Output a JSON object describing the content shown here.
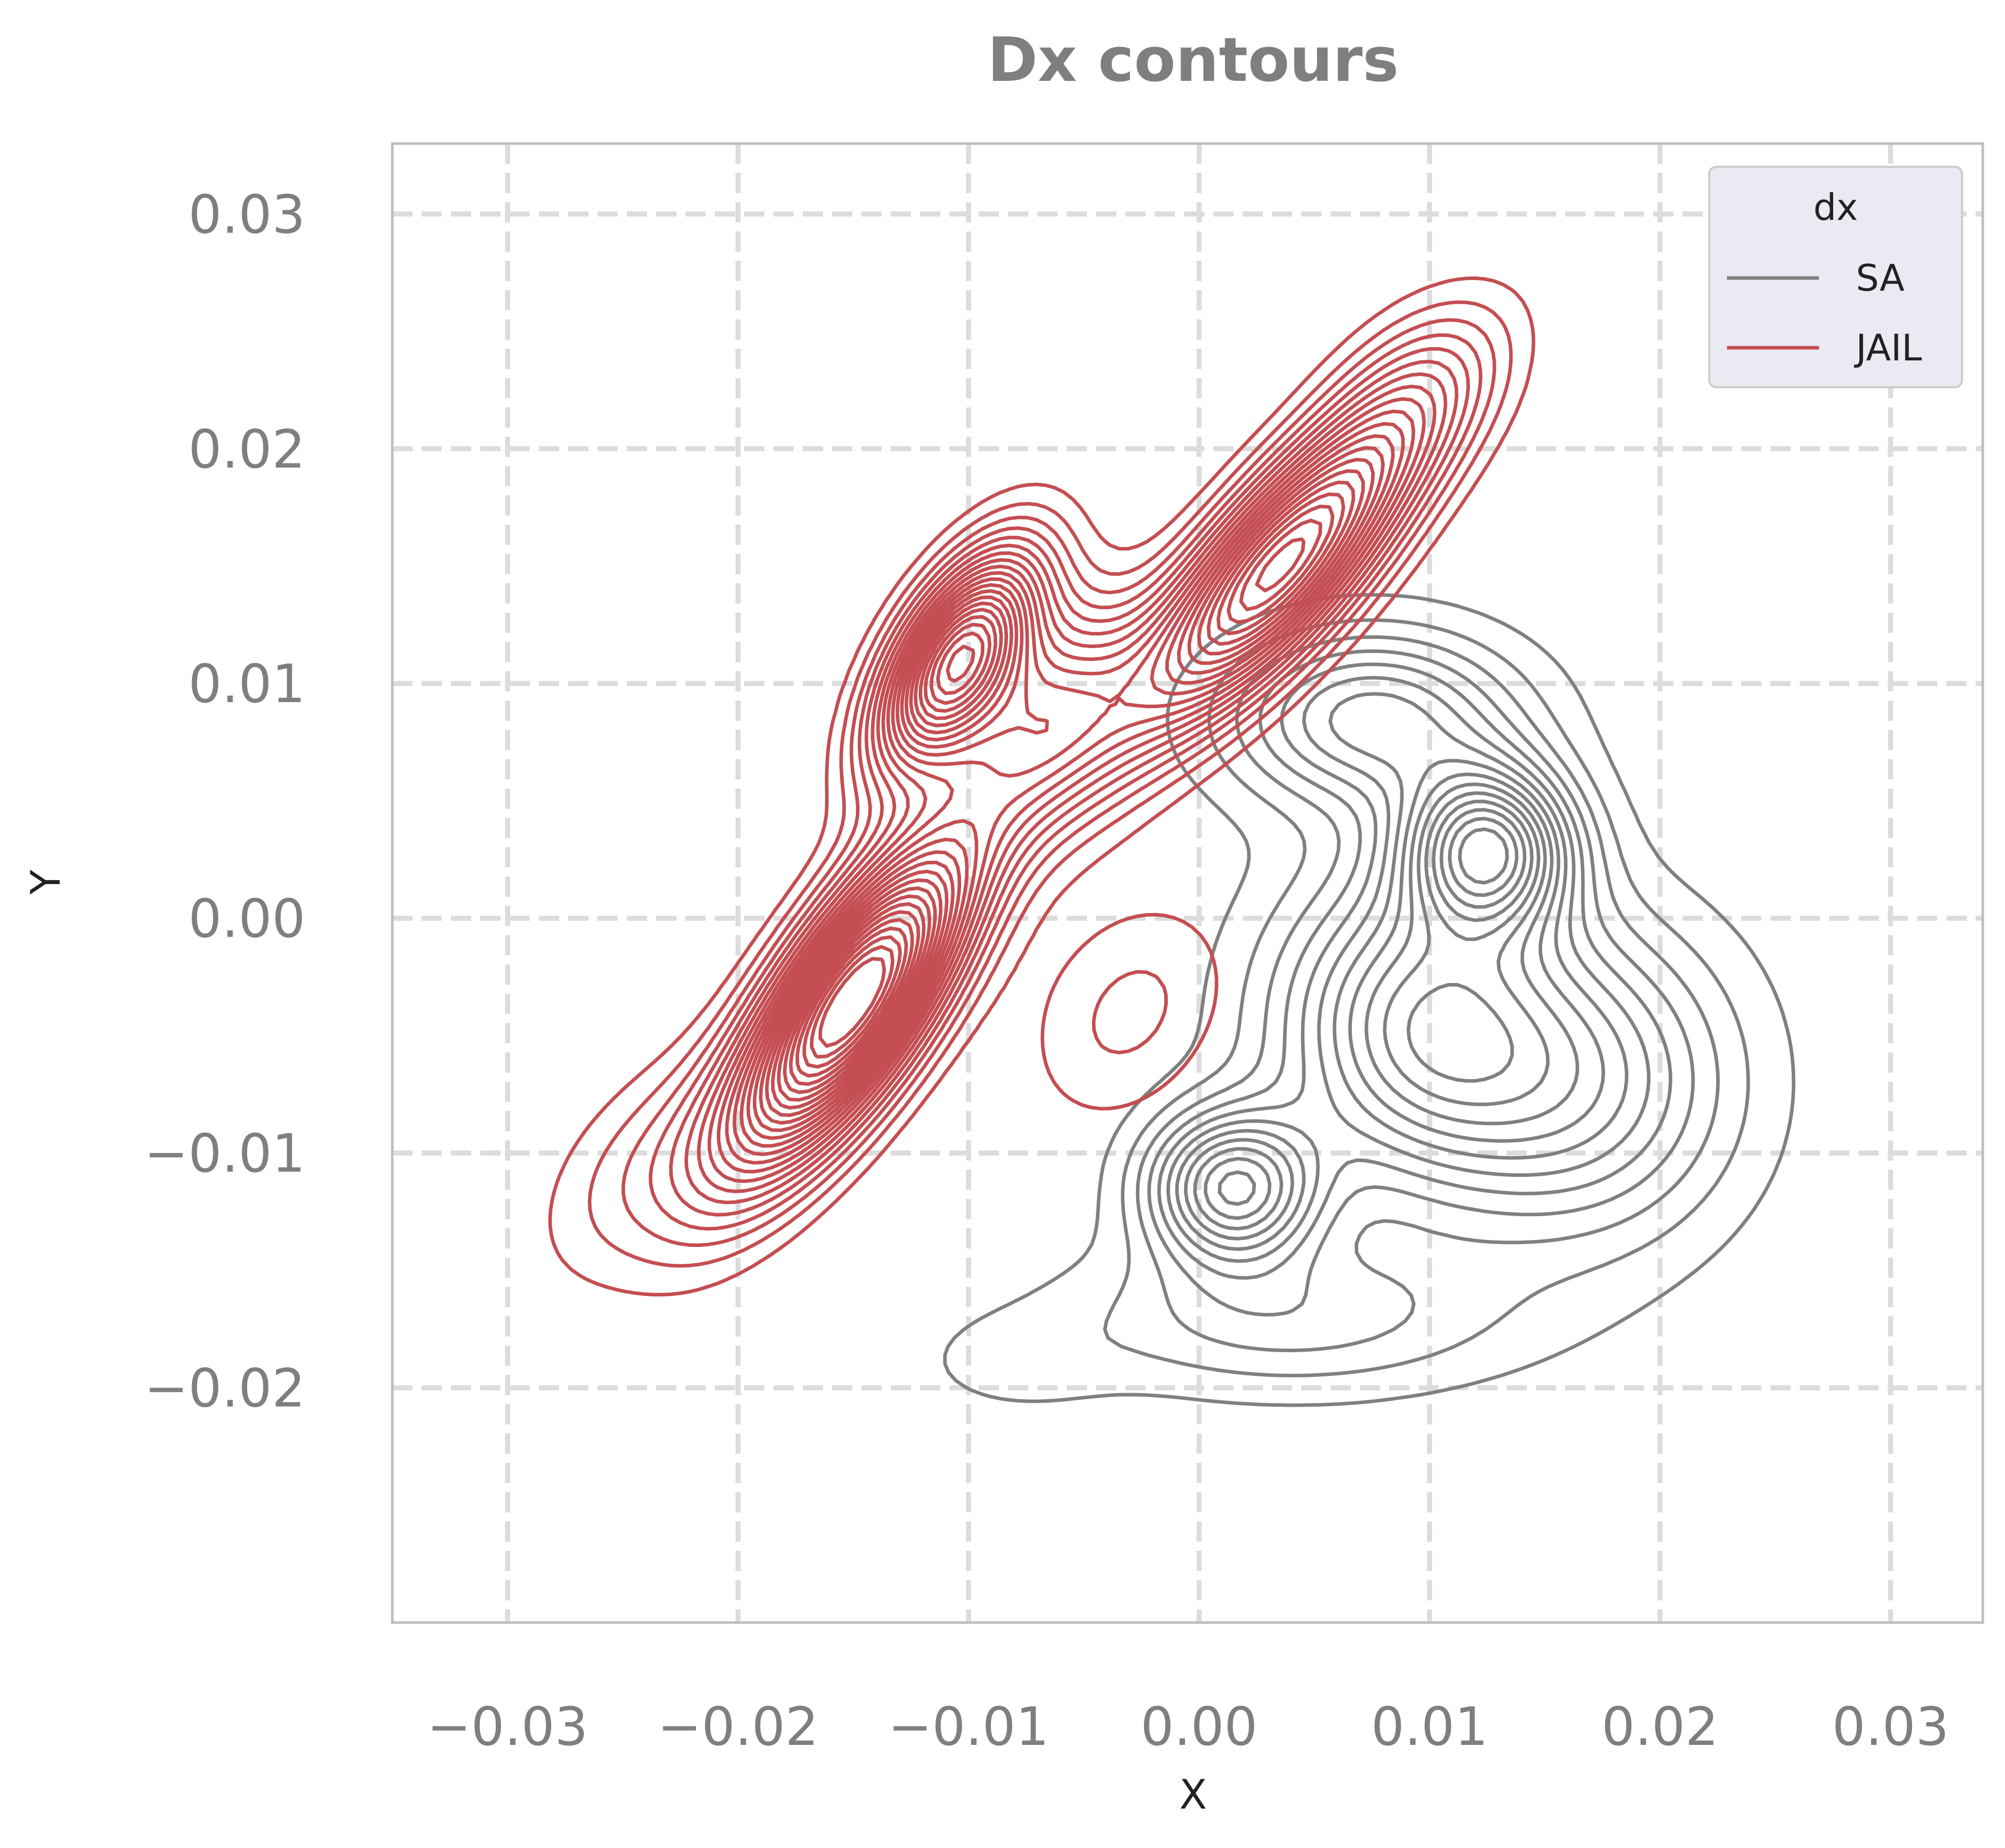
{
  "chart_data": {
    "type": "contour",
    "title": "Dx contours",
    "xlabel": "X",
    "ylabel": "Y",
    "xlim": [
      -0.035,
      0.034
    ],
    "ylim": [
      -0.03,
      0.033
    ],
    "xticks": [
      -0.03,
      -0.02,
      -0.01,
      0.0,
      0.01,
      0.02,
      0.03
    ],
    "xtick_labels": [
      "−0.03",
      "−0.02",
      "−0.01",
      "0.00",
      "0.01",
      "0.02",
      "0.03"
    ],
    "yticks": [
      -0.02,
      -0.01,
      0.0,
      0.01,
      0.02,
      0.03
    ],
    "ytick_labels": [
      "−0.02",
      "−0.01",
      "0.00",
      "0.01",
      "0.02",
      "0.03"
    ],
    "grid": true,
    "grid_style": "dashed",
    "legend": {
      "title": "dx",
      "placement": "upper right",
      "entries": [
        {
          "label": "SA",
          "color": "#808080"
        },
        {
          "label": "JAIL",
          "color": "#c44e52"
        }
      ]
    },
    "series": [
      {
        "name": "SA",
        "color": "#808080",
        "modes": [
          {
            "x": 0.0125,
            "y": 0.003,
            "sx": 0.0025,
            "sy": 0.0024,
            "rho": 0.0,
            "w": 1.0
          },
          {
            "x": 0.0015,
            "y": -0.0115,
            "sx": 0.0025,
            "sy": 0.0022,
            "rho": 0.0,
            "w": 0.8
          },
          {
            "x": 0.0095,
            "y": -0.0045,
            "sx": 0.0042,
            "sy": 0.0045,
            "rho": 0.0,
            "w": 0.7
          },
          {
            "x": 0.0165,
            "y": -0.007,
            "sx": 0.0045,
            "sy": 0.0045,
            "rho": 0.0,
            "w": 0.5
          },
          {
            "x": 0.0075,
            "y": 0.0085,
            "sx": 0.0042,
            "sy": 0.0025,
            "rho": 0.0,
            "w": 0.55
          },
          {
            "x": 0.004,
            "y": -0.017,
            "sx": 0.0065,
            "sy": 0.0022,
            "rho": 0.0,
            "w": 0.25
          },
          {
            "x": -0.008,
            "y": -0.019,
            "sx": 0.003,
            "sy": 0.0015,
            "rho": 0.0,
            "w": 0.08
          }
        ]
      },
      {
        "name": "JAIL",
        "color": "#c44e52",
        "modes": [
          {
            "x": -0.015,
            "y": -0.0035,
            "sx": 0.0036,
            "sy": 0.0048,
            "rho": 0.75,
            "w": 1.0
          },
          {
            "x": -0.0105,
            "y": 0.011,
            "sx": 0.0024,
            "sy": 0.0032,
            "rho": 0.6,
            "w": 0.75
          },
          {
            "x": 0.0035,
            "y": 0.015,
            "sx": 0.0042,
            "sy": 0.0046,
            "rho": 0.8,
            "w": 0.8
          },
          {
            "x": -0.0065,
            "y": 0.0085,
            "sx": 0.0028,
            "sy": 0.0033,
            "rho": 0.4,
            "w": 0.35
          },
          {
            "x": -0.0235,
            "y": -0.0105,
            "sx": 0.0035,
            "sy": 0.0035,
            "rho": 0.5,
            "w": 0.12
          },
          {
            "x": -0.003,
            "y": -0.004,
            "sx": 0.0032,
            "sy": 0.0035,
            "rho": 0.3,
            "w": 0.1
          },
          {
            "x": 0.0095,
            "y": 0.0225,
            "sx": 0.0028,
            "sy": 0.0028,
            "rho": 0.4,
            "w": 0.12
          }
        ]
      }
    ]
  }
}
